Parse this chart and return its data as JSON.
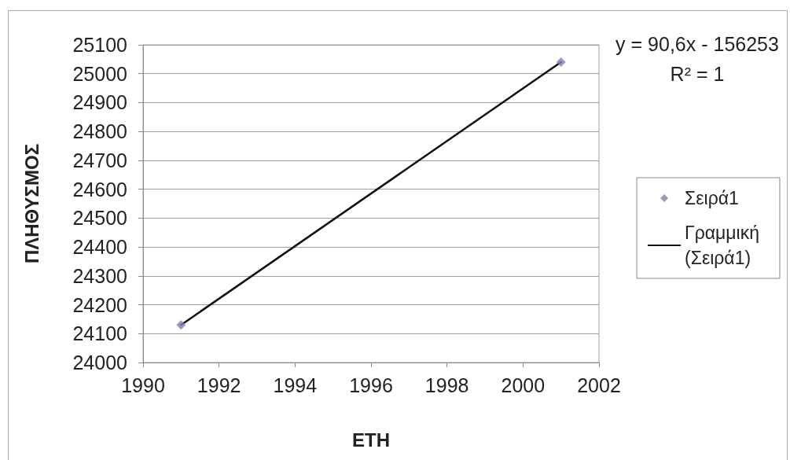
{
  "chart_data": {
    "type": "scatter",
    "xlabel": "ΕΤΗ",
    "ylabel": "ΠΛΗΘΥΣΜΟΣ",
    "x": [
      1991,
      2001
    ],
    "series": [
      {
        "name": "Σειρά1",
        "color": "#7f7fb2",
        "values": [
          24130,
          25040
        ],
        "marker": "diamond"
      },
      {
        "name": "Γραμμική (Σειρά1)",
        "type": "line",
        "color": "#111111",
        "x": [
          1991,
          2001
        ],
        "values": [
          24130,
          25040
        ],
        "marker": "none"
      }
    ],
    "xlim": [
      1990,
      2002
    ],
    "xticks": [
      1990,
      1992,
      1994,
      1996,
      1998,
      2000,
      2002
    ],
    "ylim": [
      24000,
      25100
    ],
    "yticks": [
      24000,
      24100,
      24200,
      24300,
      24400,
      24500,
      24600,
      24700,
      24800,
      24900,
      25000,
      25100
    ],
    "grid": "y",
    "legend": "right",
    "line_style": "solid",
    "annotations": [
      "y = 90,6x - 156253",
      "R² = 1"
    ]
  }
}
